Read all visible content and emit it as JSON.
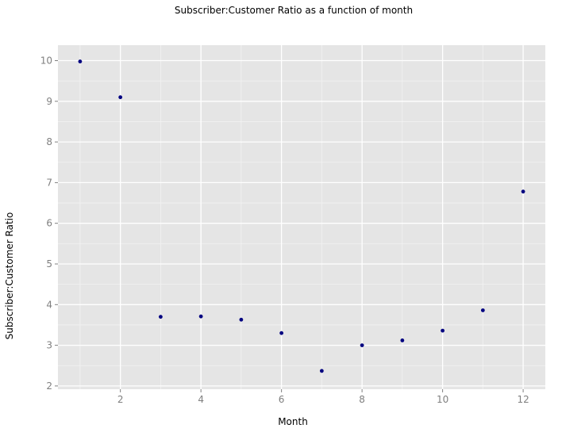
{
  "chart_data": {
    "type": "scatter",
    "title": "Subscriber:Customer Ratio as a function of month",
    "xlabel": "Month",
    "ylabel": "Subscriber:Customer Ratio",
    "xlim": [
      0.45,
      12.55
    ],
    "ylim": [
      1.92,
      10.38
    ],
    "x_ticks": [
      2,
      4,
      6,
      8,
      10,
      12
    ],
    "y_ticks": [
      2,
      3,
      4,
      5,
      6,
      7,
      8,
      9,
      10
    ],
    "grid": true,
    "legend": "none",
    "colors": {
      "panel": "#e5e5e5",
      "grid_major": "#ffffff",
      "grid_minor": "#f2f2f2",
      "point": "#000080"
    },
    "points": [
      {
        "x": 1,
        "y": 9.98
      },
      {
        "x": 2,
        "y": 9.1
      },
      {
        "x": 3,
        "y": 3.7
      },
      {
        "x": 4,
        "y": 3.71
      },
      {
        "x": 5,
        "y": 3.63
      },
      {
        "x": 6,
        "y": 3.3
      },
      {
        "x": 7,
        "y": 2.37
      },
      {
        "x": 8,
        "y": 3.0
      },
      {
        "x": 9,
        "y": 3.12
      },
      {
        "x": 10,
        "y": 3.36
      },
      {
        "x": 11,
        "y": 3.86
      },
      {
        "x": 12,
        "y": 6.78
      }
    ]
  }
}
